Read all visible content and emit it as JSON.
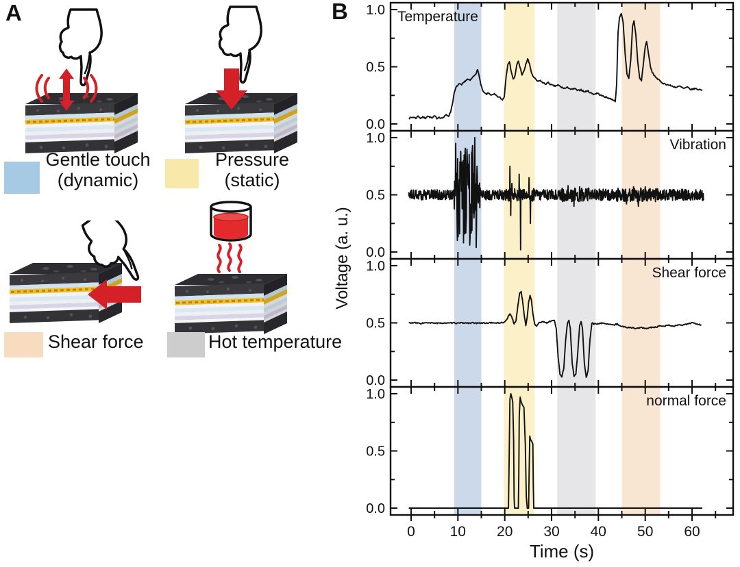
{
  "panel_a": {
    "label": "A",
    "illustrations": [
      {
        "id": "gentle-touch",
        "caption_line1": "Gentle touch",
        "caption_line2": "(dynamic)",
        "swatch_color": "#a6c9e4"
      },
      {
        "id": "pressure",
        "caption_line1": "Pressure",
        "caption_line2": "(static)",
        "swatch_color": "#f8e8a9"
      },
      {
        "id": "shear-force",
        "caption_line1": "Shear force",
        "caption_line2": "",
        "swatch_color": "#f8dcbf"
      },
      {
        "id": "hot-temperature",
        "caption_line1": "Hot temperature",
        "caption_line2": "",
        "swatch_color": "#cdcdcd"
      }
    ]
  },
  "panel_b": {
    "label": "B"
  },
  "colors": {
    "trace": "#111111",
    "arrow_red": "#d42127",
    "band_blue": "#ccd9ea",
    "band_yellow": "#fbf0c8",
    "band_gray": "#e6e6e9",
    "band_peach": "#f8e5d2"
  },
  "chart_data": {
    "type": "line",
    "xlabel": "Time (s)",
    "ylabel": "Voltage (a. u.)",
    "x_ticks": [
      0,
      10,
      20,
      30,
      40,
      50,
      60
    ],
    "x_tick_labels": [
      "0",
      "10",
      "20",
      "30",
      "40",
      "50",
      "60"
    ],
    "x_minor_ticks": [
      5,
      15,
      25,
      35,
      45,
      55,
      65
    ],
    "xlim": [
      -4.4,
      68.8
    ],
    "y_ticks": [
      1.0,
      0.5,
      0.0
    ],
    "y_tick_labels": [
      "1.0",
      "0.5",
      "0.0"
    ],
    "y_minor_ticks": [
      0.25,
      0.75
    ],
    "ylim": [
      -0.06,
      1.06
    ],
    "bands": [
      {
        "name": "gentle-touch",
        "t0": 9.2,
        "t1": 15.0,
        "color": "#ccd9ea"
      },
      {
        "name": "pressure",
        "t0": 19.8,
        "t1": 26.4,
        "color": "#fbf0c8"
      },
      {
        "name": "shear-force",
        "t0": 31.2,
        "t1": 39.4,
        "color": "#e6e6e9"
      },
      {
        "name": "hot-temperature",
        "t0": 45.0,
        "t1": 53.2,
        "color": "#f8e5d2"
      }
    ],
    "panels": [
      {
        "label": "Temperature",
        "label_pos": "top-left",
        "kind": "anchors",
        "noise": 0.006,
        "anchors": [
          [
            -0.5,
            0.05
          ],
          [
            0.5,
            0.06
          ],
          [
            1,
            0.05
          ],
          [
            1.5,
            0.07
          ],
          [
            2,
            0.05
          ],
          [
            2.5,
            0.06
          ],
          [
            3,
            0.05
          ],
          [
            3.5,
            0.07
          ],
          [
            4,
            0.06
          ],
          [
            4.5,
            0.05
          ],
          [
            5,
            0.07
          ],
          [
            5.5,
            0.05
          ],
          [
            6,
            0.06
          ],
          [
            6.5,
            0.05
          ],
          [
            7,
            0.06
          ],
          [
            7.5,
            0.08
          ],
          [
            8,
            0.07
          ],
          [
            8.4,
            0.1
          ],
          [
            8.8,
            0.17
          ],
          [
            9.2,
            0.27
          ],
          [
            9.6,
            0.32
          ],
          [
            10.2,
            0.35
          ],
          [
            10.8,
            0.34
          ],
          [
            11.4,
            0.37
          ],
          [
            12,
            0.39
          ],
          [
            12.6,
            0.38
          ],
          [
            13.2,
            0.41
          ],
          [
            13.8,
            0.44
          ],
          [
            14.2,
            0.47
          ],
          [
            14.5,
            0.43
          ],
          [
            14.9,
            0.34
          ],
          [
            15.4,
            0.28
          ],
          [
            16,
            0.26
          ],
          [
            16.6,
            0.27
          ],
          [
            17.2,
            0.25
          ],
          [
            17.8,
            0.26
          ],
          [
            18.4,
            0.24
          ],
          [
            19,
            0.23
          ],
          [
            19.5,
            0.21
          ],
          [
            19.9,
            0.24
          ],
          [
            20.3,
            0.42
          ],
          [
            20.7,
            0.53
          ],
          [
            21,
            0.54
          ],
          [
            21.4,
            0.46
          ],
          [
            21.8,
            0.39
          ],
          [
            22.2,
            0.42
          ],
          [
            22.6,
            0.52
          ],
          [
            22.9,
            0.55
          ],
          [
            23.3,
            0.49
          ],
          [
            23.7,
            0.43
          ],
          [
            24.1,
            0.46
          ],
          [
            24.5,
            0.52
          ],
          [
            24.9,
            0.57
          ],
          [
            25.3,
            0.52
          ],
          [
            25.7,
            0.45
          ],
          [
            26.1,
            0.41
          ],
          [
            26.6,
            0.39
          ],
          [
            27.1,
            0.37
          ],
          [
            27.6,
            0.38
          ],
          [
            28.1,
            0.36
          ],
          [
            28.7,
            0.35
          ],
          [
            29.3,
            0.36
          ],
          [
            30,
            0.34
          ],
          [
            30.7,
            0.33
          ],
          [
            31.4,
            0.34
          ],
          [
            32.1,
            0.32
          ],
          [
            32.8,
            0.31
          ],
          [
            33.5,
            0.32
          ],
          [
            34.2,
            0.3
          ],
          [
            34.9,
            0.31
          ],
          [
            35.6,
            0.29
          ],
          [
            36.3,
            0.3
          ],
          [
            37,
            0.28
          ],
          [
            37.7,
            0.29
          ],
          [
            38.4,
            0.27
          ],
          [
            39.1,
            0.26
          ],
          [
            39.8,
            0.27
          ],
          [
            40.5,
            0.25
          ],
          [
            41.2,
            0.24
          ],
          [
            41.9,
            0.23
          ],
          [
            42.6,
            0.22
          ],
          [
            43.2,
            0.21
          ],
          [
            43.6,
            0.2
          ],
          [
            43.9,
            0.35
          ],
          [
            44.2,
            0.8
          ],
          [
            44.5,
            0.93
          ],
          [
            44.9,
            0.97
          ],
          [
            45.3,
            0.88
          ],
          [
            45.7,
            0.62
          ],
          [
            46.1,
            0.44
          ],
          [
            46.5,
            0.4
          ],
          [
            46.9,
            0.55
          ],
          [
            47.3,
            0.85
          ],
          [
            47.6,
            0.9
          ],
          [
            48,
            0.78
          ],
          [
            48.4,
            0.55
          ],
          [
            48.8,
            0.4
          ],
          [
            49.2,
            0.38
          ],
          [
            49.6,
            0.52
          ],
          [
            50,
            0.68
          ],
          [
            50.3,
            0.72
          ],
          [
            50.7,
            0.62
          ],
          [
            51.1,
            0.5
          ],
          [
            51.5,
            0.45
          ],
          [
            52,
            0.42
          ],
          [
            52.5,
            0.4
          ],
          [
            53,
            0.38
          ],
          [
            53.6,
            0.36
          ],
          [
            54.2,
            0.35
          ],
          [
            55,
            0.34
          ],
          [
            55.8,
            0.33
          ],
          [
            56.6,
            0.32
          ],
          [
            57.4,
            0.33
          ],
          [
            58.2,
            0.31
          ],
          [
            59,
            0.32
          ],
          [
            59.8,
            0.3
          ],
          [
            60.6,
            0.31
          ],
          [
            61.4,
            0.3
          ],
          [
            62.2,
            0.3
          ]
        ]
      },
      {
        "label": "Vibration",
        "label_pos": "top-right",
        "kind": "noise",
        "baseline": 0.5,
        "dt": 0.06,
        "t_end": 62.5,
        "noise_segments": [
          [
            -0.5,
            9.2,
            0.045
          ],
          [
            9.2,
            9.8,
            0.2
          ],
          [
            9.8,
            10.6,
            0.38
          ],
          [
            10.6,
            13.2,
            0.42
          ],
          [
            13.2,
            14.2,
            0.3
          ],
          [
            14.2,
            14.8,
            0.12
          ],
          [
            14.8,
            20,
            0.045
          ],
          [
            20,
            26.5,
            0.055
          ],
          [
            26.5,
            32,
            0.045
          ],
          [
            32,
            38,
            0.06
          ],
          [
            38,
            44,
            0.05
          ],
          [
            44,
            53,
            0.06
          ],
          [
            53,
            62.5,
            0.05
          ]
        ],
        "spikes": [
          [
            9.5,
            0.95
          ],
          [
            9.9,
            0.1
          ],
          [
            10.6,
            0.88
          ],
          [
            11.2,
            0.08
          ],
          [
            11.9,
            0.9
          ],
          [
            12.5,
            0.06
          ],
          [
            13.1,
            0.93
          ],
          [
            13.6,
            1.0
          ],
          [
            13.9,
            0.04
          ],
          [
            14.1,
            0.75
          ],
          [
            21.1,
            0.75
          ],
          [
            21.3,
            0.32
          ],
          [
            21.5,
            0.6
          ],
          [
            23.1,
            0.68
          ],
          [
            23.4,
            0.02
          ],
          [
            25.2,
            0.65
          ],
          [
            25.5,
            0.25
          ],
          [
            33.5,
            0.58
          ],
          [
            34.8,
            0.4
          ],
          [
            36,
            0.57
          ],
          [
            46,
            0.42
          ],
          [
            47.5,
            0.57
          ],
          [
            48.5,
            0.4
          ],
          [
            50,
            0.57
          ]
        ]
      },
      {
        "label": "Shear force",
        "label_pos": "top-right",
        "kind": "anchors",
        "noise": 0.005,
        "anchors": [
          [
            -0.5,
            0.5
          ],
          [
            1,
            0.5
          ],
          [
            2,
            0.495
          ],
          [
            3,
            0.5
          ],
          [
            4,
            0.498
          ],
          [
            5,
            0.5
          ],
          [
            6,
            0.495
          ],
          [
            7,
            0.5
          ],
          [
            8,
            0.497
          ],
          [
            9,
            0.5
          ],
          [
            10,
            0.497
          ],
          [
            11,
            0.5
          ],
          [
            12,
            0.498
          ],
          [
            13,
            0.5
          ],
          [
            14,
            0.496
          ],
          [
            15,
            0.5
          ],
          [
            16,
            0.498
          ],
          [
            17,
            0.5
          ],
          [
            18,
            0.5
          ],
          [
            19,
            0.5
          ],
          [
            19.8,
            0.505
          ],
          [
            20.3,
            0.52
          ],
          [
            20.8,
            0.56
          ],
          [
            21.2,
            0.58
          ],
          [
            21.6,
            0.54
          ],
          [
            22,
            0.49
          ],
          [
            22.4,
            0.52
          ],
          [
            22.8,
            0.65
          ],
          [
            23.2,
            0.76
          ],
          [
            23.5,
            0.77
          ],
          [
            23.8,
            0.7
          ],
          [
            24.2,
            0.55
          ],
          [
            24.5,
            0.48
          ],
          [
            24.8,
            0.55
          ],
          [
            25.1,
            0.68
          ],
          [
            25.4,
            0.74
          ],
          [
            25.7,
            0.7
          ],
          [
            26,
            0.58
          ],
          [
            26.4,
            0.49
          ],
          [
            26.8,
            0.47
          ],
          [
            27.3,
            0.5
          ],
          [
            28,
            0.51
          ],
          [
            29,
            0.5
          ],
          [
            30,
            0.52
          ],
          [
            30.6,
            0.52
          ],
          [
            31,
            0.45
          ],
          [
            31.4,
            0.2
          ],
          [
            31.8,
            0.05
          ],
          [
            32.2,
            0.03
          ],
          [
            32.6,
            0.1
          ],
          [
            33,
            0.35
          ],
          [
            33.4,
            0.5
          ],
          [
            33.7,
            0.52
          ],
          [
            34,
            0.45
          ],
          [
            34.4,
            0.15
          ],
          [
            34.8,
            0.03
          ],
          [
            35.2,
            0.05
          ],
          [
            35.6,
            0.25
          ],
          [
            36,
            0.48
          ],
          [
            36.3,
            0.51
          ],
          [
            36.6,
            0.45
          ],
          [
            37,
            0.15
          ],
          [
            37.4,
            0.02
          ],
          [
            37.8,
            0.08
          ],
          [
            38.2,
            0.35
          ],
          [
            38.6,
            0.5
          ],
          [
            39,
            0.49
          ],
          [
            40,
            0.49
          ],
          [
            41,
            0.5
          ],
          [
            42,
            0.49
          ],
          [
            43,
            0.48
          ],
          [
            44,
            0.49
          ],
          [
            45,
            0.47
          ],
          [
            46,
            0.46
          ],
          [
            47,
            0.46
          ],
          [
            48,
            0.45
          ],
          [
            49,
            0.46
          ],
          [
            50,
            0.45
          ],
          [
            51,
            0.46
          ],
          [
            52,
            0.46
          ],
          [
            53,
            0.47
          ],
          [
            54,
            0.47
          ],
          [
            55,
            0.48
          ],
          [
            56,
            0.47
          ],
          [
            57,
            0.48
          ],
          [
            58,
            0.48
          ],
          [
            59,
            0.49
          ],
          [
            60,
            0.5
          ],
          [
            61,
            0.49
          ],
          [
            62,
            0.48
          ]
        ]
      },
      {
        "label": "normal force",
        "label_pos": "top-right",
        "kind": "anchors",
        "noise": 0.0,
        "anchors": [
          [
            -0.5,
            0.0
          ],
          [
            20.5,
            0.0
          ],
          [
            20.8,
            0.0
          ],
          [
            20.9,
            0.3
          ],
          [
            21.0,
            0.62
          ],
          [
            21.1,
            0.95
          ],
          [
            21.3,
            1.0
          ],
          [
            21.5,
            0.97
          ],
          [
            21.7,
            0.93
          ],
          [
            21.9,
            0.6
          ],
          [
            22.0,
            0.1
          ],
          [
            22.1,
            0.0
          ],
          [
            22.9,
            0.0
          ],
          [
            23.0,
            0.3
          ],
          [
            23.1,
            0.8
          ],
          [
            23.3,
            0.97
          ],
          [
            23.5,
            0.93
          ],
          [
            23.8,
            0.9
          ],
          [
            24.1,
            0.88
          ],
          [
            24.4,
            0.55
          ],
          [
            24.6,
            0.1
          ],
          [
            24.8,
            0.0
          ],
          [
            25.1,
            0.0
          ],
          [
            25.2,
            0.3
          ],
          [
            25.35,
            0.63
          ],
          [
            25.5,
            0.6
          ],
          [
            25.8,
            0.58
          ],
          [
            26.0,
            0.56
          ],
          [
            26.1,
            0.2
          ],
          [
            26.2,
            0.0
          ],
          [
            27,
            0.0
          ],
          [
            62.2,
            0.0
          ]
        ]
      }
    ]
  }
}
